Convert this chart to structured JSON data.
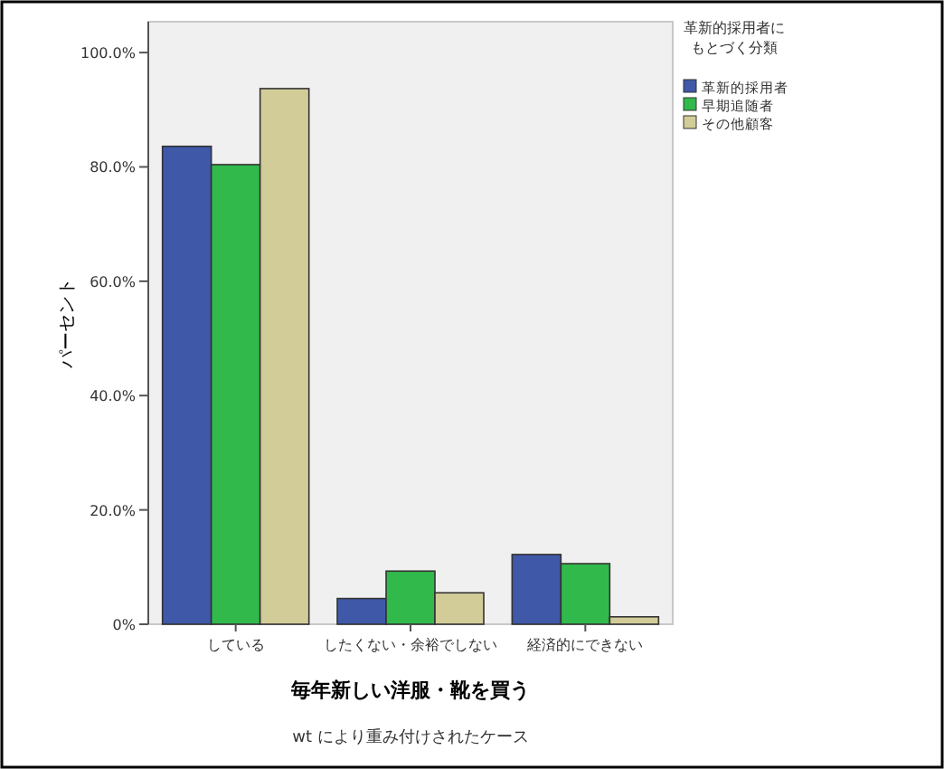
{
  "chart_data": {
    "type": "bar",
    "xlabel": "毎年新しい洋服・靴を買う",
    "ylabel": "パーセント",
    "legend_title": "革新的採用者にもとづく分類",
    "categories": [
      "している",
      "したくない・余裕でしない",
      "経済的にできない"
    ],
    "series": [
      {
        "name": "革新的採用者",
        "color": "#3f58a8",
        "values": [
          83.6,
          4.5,
          12.2
        ]
      },
      {
        "name": "早期追随者",
        "color": "#31b94b",
        "values": [
          80.4,
          9.3,
          10.6
        ]
      },
      {
        "name": "その他顧客",
        "color": "#d2cd98",
        "values": [
          93.7,
          5.5,
          1.3
        ]
      }
    ],
    "ylim": [
      0,
      105.4
    ],
    "yticks": [
      {
        "value": 0,
        "label": "0%"
      },
      {
        "value": 20,
        "label": "20.0%"
      },
      {
        "value": 40,
        "label": "40.0%"
      },
      {
        "value": 60,
        "label": "60.0%"
      },
      {
        "value": 80,
        "label": "80.0%"
      },
      {
        "value": 100,
        "label": "100.0%"
      }
    ],
    "grid": false,
    "legend": "right",
    "annotations": [
      "wt により重み付けされたケース"
    ]
  }
}
